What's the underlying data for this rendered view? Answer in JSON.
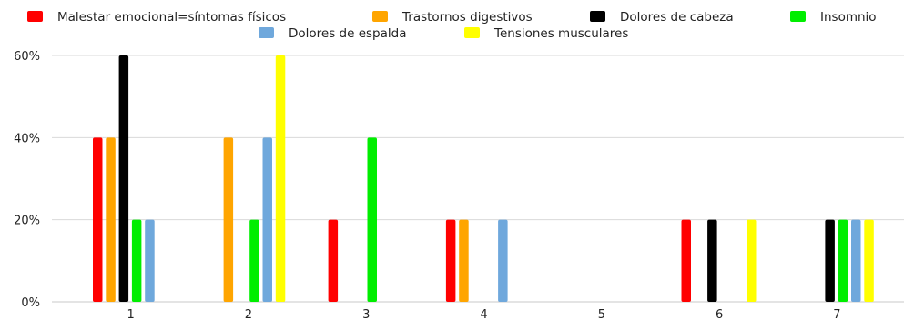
{
  "chart_data": {
    "type": "bar",
    "categories": [
      "1",
      "2",
      "3",
      "4",
      "5",
      "6",
      "7"
    ],
    "series": [
      {
        "name": "Malestar emocional=síntomas físicos",
        "color": "#ff0000",
        "values": [
          40,
          0,
          20,
          20,
          0,
          20,
          0
        ]
      },
      {
        "name": "Trastornos digestivos",
        "color": "#ffa500",
        "values": [
          40,
          40,
          0,
          20,
          0,
          0,
          0
        ]
      },
      {
        "name": "Dolores de cabeza",
        "color": "#000000",
        "values": [
          60,
          0,
          0,
          0,
          0,
          20,
          20
        ]
      },
      {
        "name": "Insomnio",
        "color": "#00ee00",
        "values": [
          20,
          20,
          40,
          0,
          0,
          0,
          20
        ]
      },
      {
        "name": "Dolores de espalda",
        "color": "#6fa8dc",
        "values": [
          20,
          40,
          0,
          20,
          0,
          0,
          20
        ]
      },
      {
        "name": "Tensiones musculares",
        "color": "#ffff00",
        "values": [
          0,
          60,
          0,
          0,
          0,
          20,
          20
        ]
      }
    ],
    "y_ticks": [
      "0%",
      "20%",
      "40%",
      "60%"
    ],
    "ylim": [
      0,
      60
    ],
    "y_unit": "%",
    "grid": true,
    "legend_position": "top"
  }
}
